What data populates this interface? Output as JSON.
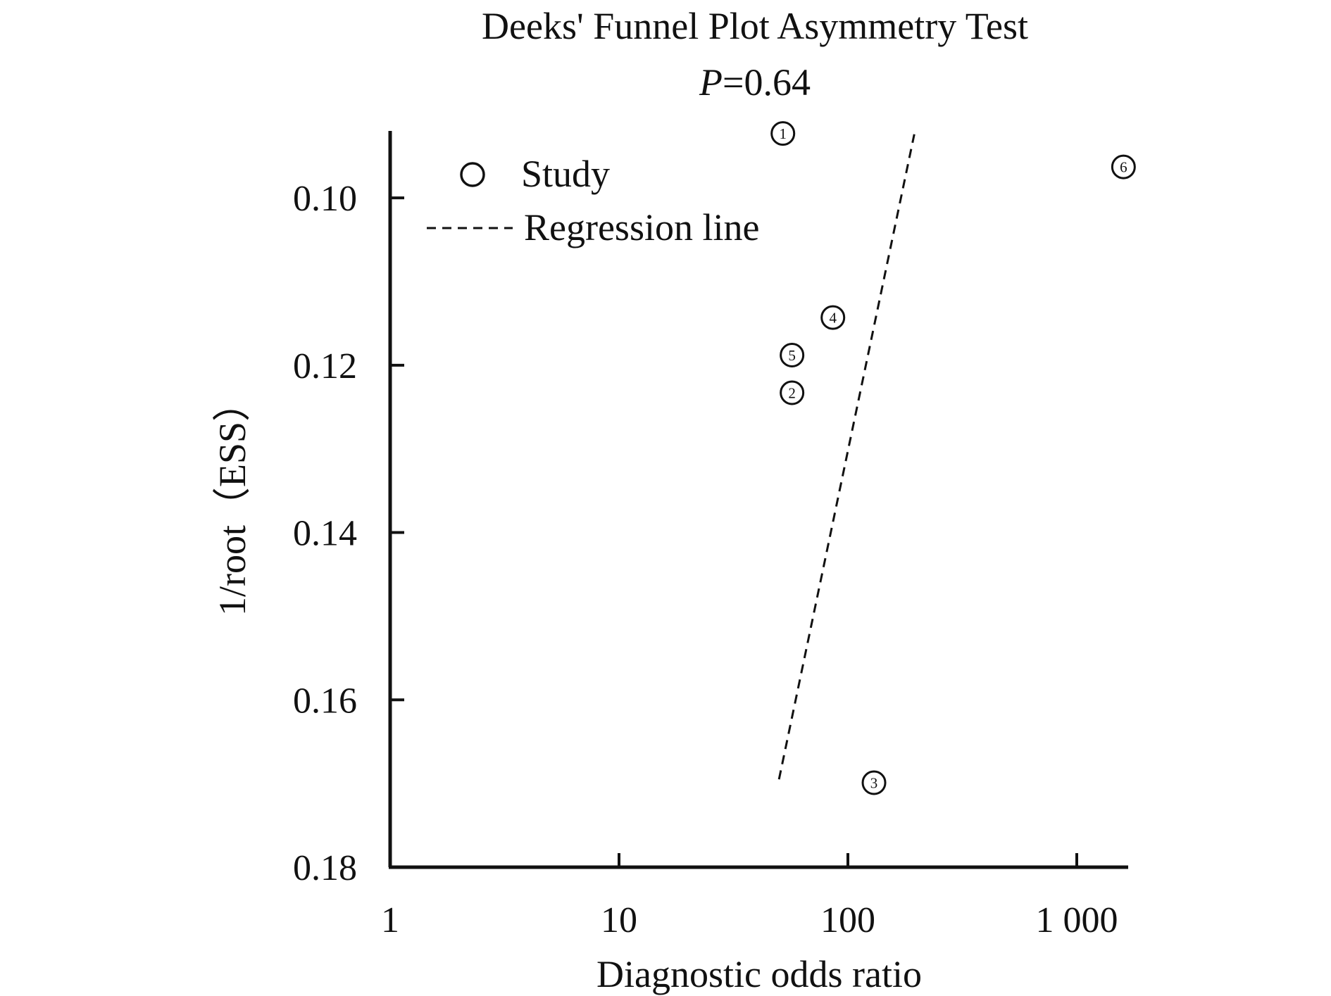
{
  "chart_data": {
    "type": "scatter",
    "title": "Deeks' Funnel Plot Asymmetry Test",
    "subtitle_label": "P",
    "subtitle_value": "=0.64",
    "xlabel": "Diagnostic odds ratio",
    "ylabel": "1/root（ESS）",
    "x_scale": "log",
    "xlim": [
      1,
      1700
    ],
    "ylim": [
      0.18,
      0.092
    ],
    "y_inverted": true,
    "x_ticks": [
      {
        "value": 1,
        "label": "1"
      },
      {
        "value": 10,
        "label": "10"
      },
      {
        "value": 100,
        "label": "100"
      },
      {
        "value": 1000,
        "label": "1 000"
      }
    ],
    "y_ticks": [
      {
        "value": 0.1,
        "label": "0.10"
      },
      {
        "value": 0.12,
        "label": "0.12"
      },
      {
        "value": 0.14,
        "label": "0.14"
      },
      {
        "value": 0.16,
        "label": "0.16"
      },
      {
        "value": 0.18,
        "label": "0.18"
      }
    ],
    "grid": false,
    "legend": {
      "placement": "top-left",
      "entries": [
        {
          "label": "Study",
          "kind": "marker"
        },
        {
          "label": "Regression line",
          "kind": "dashed-line"
        }
      ]
    },
    "series": [
      {
        "name": "Study",
        "points": [
          {
            "label": "①",
            "x": 52,
            "y": 0.0923
          },
          {
            "label": "②",
            "x": 57,
            "y": 0.1233
          },
          {
            "label": "③",
            "x": 130,
            "y": 0.1699
          },
          {
            "label": "④",
            "x": 86,
            "y": 0.1143
          },
          {
            "label": "⑤",
            "x": 57,
            "y": 0.1188
          },
          {
            "label": "⑥",
            "x": 1600,
            "y": 0.0963
          }
        ]
      },
      {
        "name": "Regression line",
        "line": [
          {
            "x": 50,
            "y": 0.1695
          },
          {
            "x": 195,
            "y": 0.0924
          }
        ]
      }
    ]
  }
}
